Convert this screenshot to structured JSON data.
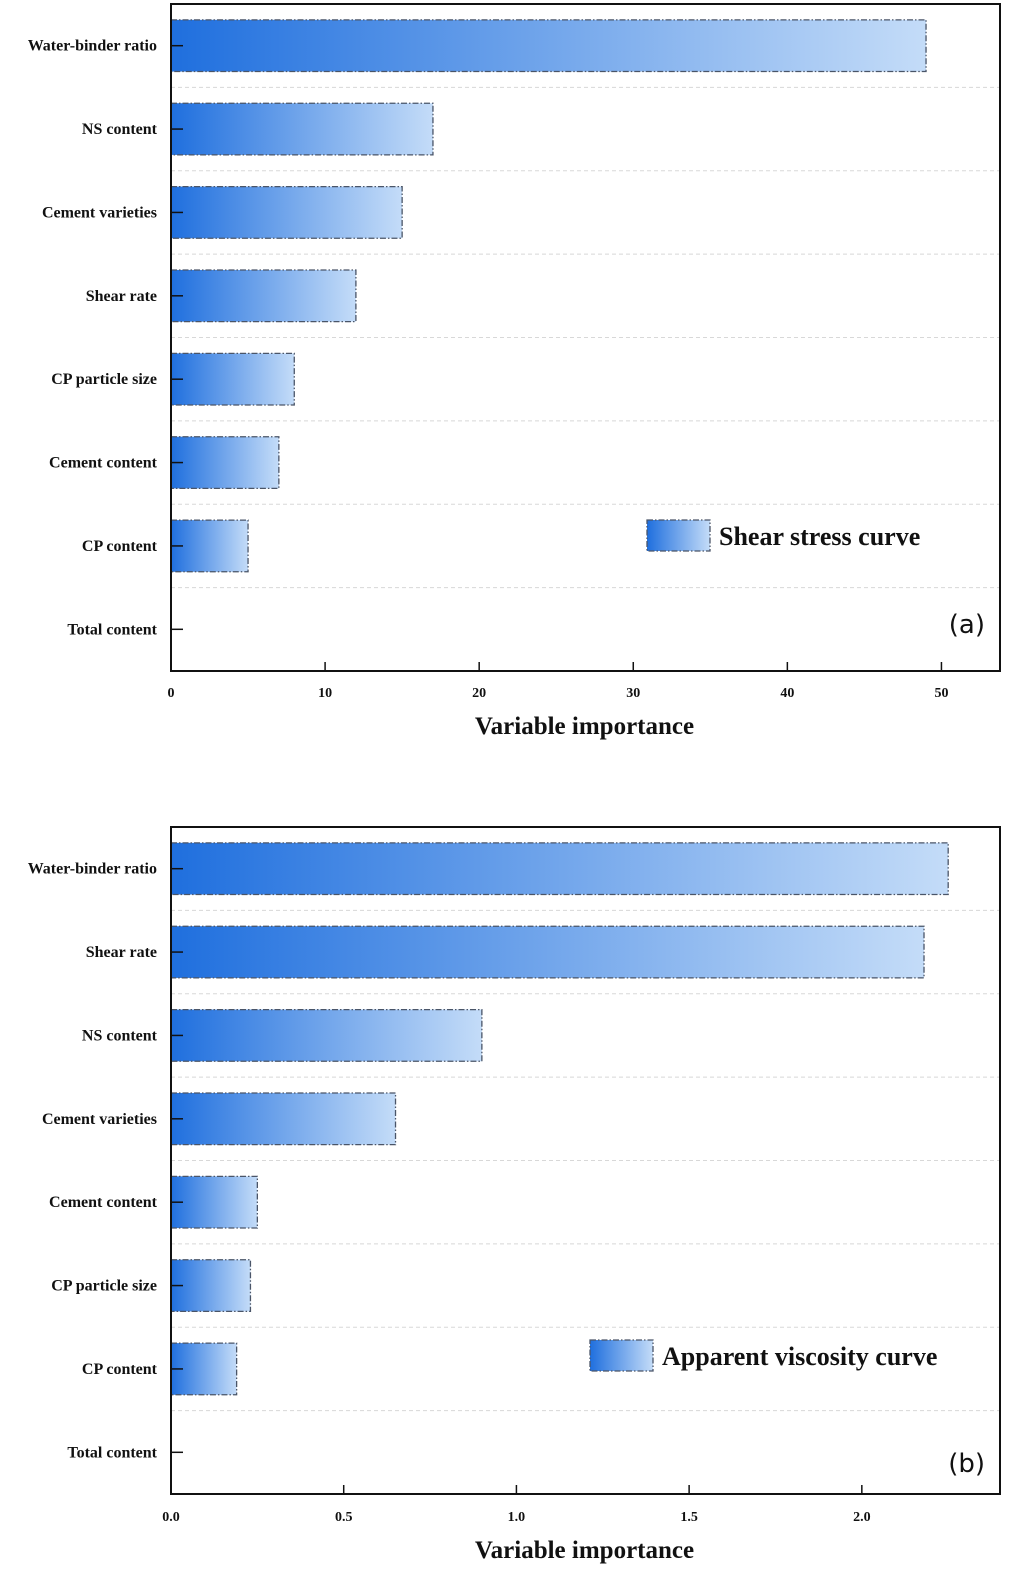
{
  "colors": {
    "bar_start": "#1f6fde",
    "bar_end": "#c4dcf8",
    "bar_border": "#4a5568",
    "axis": "#111111",
    "gridline": "#d8d8d8"
  },
  "chart_data": [
    {
      "type": "bar",
      "orientation": "horizontal",
      "panel": "(a)",
      "categories": [
        "Water-binder ratio",
        "NS content",
        "Cement varieties",
        "Shear rate",
        "CP particle size",
        "Cement content",
        "CP content",
        "Total content"
      ],
      "values": [
        49,
        17,
        15,
        12,
        8,
        7,
        5,
        0
      ],
      "series": [
        {
          "name": "Shear stress curve",
          "values": [
            49,
            17,
            15,
            12,
            8,
            7,
            5,
            0
          ]
        }
      ],
      "xlabel": "Variable importance",
      "ylabel": "",
      "xlim": [
        0,
        53.8
      ],
      "xticks": [
        0,
        10,
        20,
        30,
        40,
        50
      ],
      "xtick_labels": [
        "0",
        "10",
        "20",
        "30",
        "40",
        "50"
      ],
      "grid": "horizontal dashed",
      "legend_position": "bottom-right"
    },
    {
      "type": "bar",
      "orientation": "horizontal",
      "panel": "(b)",
      "categories": [
        "Water-binder ratio",
        "Shear rate",
        "NS content",
        "Cement varieties",
        "Cement content",
        "CP particle size",
        "CP content",
        "Total content"
      ],
      "values": [
        2.25,
        2.18,
        0.9,
        0.65,
        0.25,
        0.23,
        0.19,
        0
      ],
      "series": [
        {
          "name": "Apparent viscosity curve",
          "values": [
            2.25,
            2.18,
            0.9,
            0.65,
            0.25,
            0.23,
            0.19,
            0
          ]
        }
      ],
      "xlabel": "Variable importance",
      "ylabel": "",
      "xlim": [
        0,
        2.4
      ],
      "xticks": [
        0,
        0.5,
        1,
        1.5,
        2
      ],
      "xtick_labels": [
        "0.0",
        "0.5",
        "1.0",
        "1.5",
        "2.0"
      ],
      "grid": "horizontal dashed",
      "legend_position": "bottom-right"
    }
  ]
}
